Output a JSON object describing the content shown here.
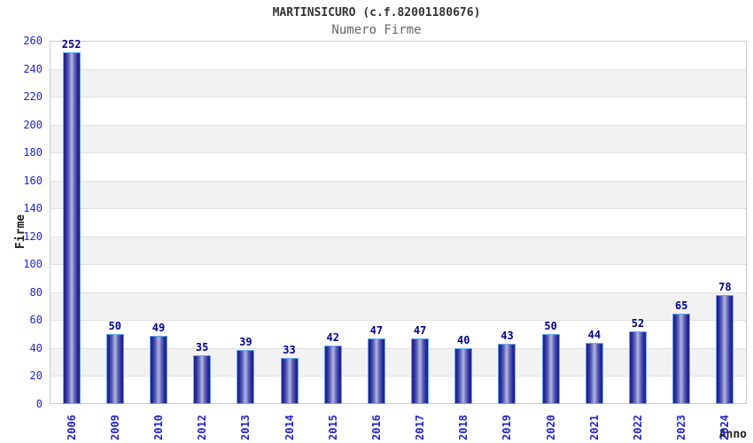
{
  "title": "MARTINSICURO (c.f.82001180676)",
  "subtitle": "Numero Firme",
  "chart_data": {
    "type": "bar",
    "title": "MARTINSICURO (c.f.82001180676)",
    "subtitle": "Numero Firme",
    "categories": [
      "2006",
      "2009",
      "2010",
      "2012",
      "2013",
      "2014",
      "2015",
      "2016",
      "2017",
      "2018",
      "2019",
      "2020",
      "2021",
      "2022",
      "2023",
      "2024"
    ],
    "values": [
      252,
      50,
      49,
      35,
      39,
      33,
      42,
      47,
      47,
      40,
      43,
      50,
      44,
      52,
      65,
      78
    ],
    "xlabel": "Anno",
    "ylabel": "Firme",
    "ylim": [
      0,
      260
    ],
    "ytick_step": 20,
    "yticks": [
      0,
      20,
      40,
      60,
      80,
      100,
      120,
      140,
      160,
      180,
      200,
      220,
      240,
      260
    ],
    "grid": "horizontal gridlines with alternating shaded bands",
    "legend_position": "none",
    "bar_value_labels_shown": true
  },
  "colors": {
    "bar_dark": "#1e1e8c",
    "bar_highlight": "#b4b8e4",
    "bar_border": "#64a8ec",
    "tick_label": "#2222cc",
    "value_label": "#00008b",
    "band_fill": "#f2f2f2",
    "gridline": "#e0e0e0",
    "plot_border": "#cccccc",
    "title_text": "#333333",
    "subtitle_text": "#666666",
    "axis_title_text": "#222222"
  }
}
